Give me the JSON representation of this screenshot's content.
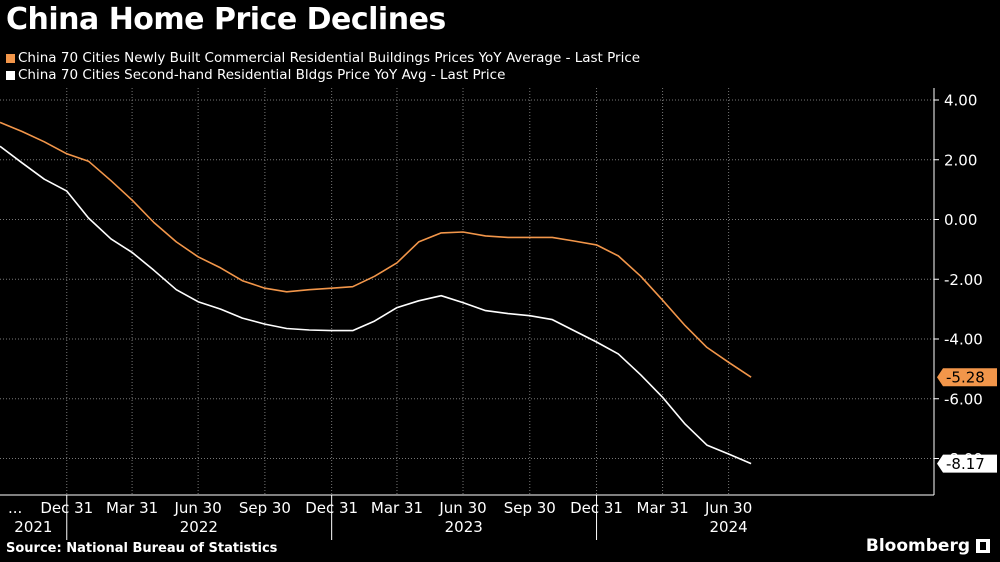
{
  "header": {
    "title": "China Home Price Declines"
  },
  "colors": {
    "background": "#000000",
    "series_new": "#f2964a",
    "series_second": "#ffffff",
    "grid": "#777777",
    "axis": "#ffffff"
  },
  "footer": {
    "source": "Source: National Bureau of Statistics",
    "brand": "Bloomberg"
  },
  "chart_data": {
    "type": "line",
    "title": "China Home Price Declines",
    "xlabel": "",
    "ylabel": "",
    "xlim": [
      0,
      1287
    ],
    "ylim": [
      -9,
      4.2
    ],
    "grid": true,
    "legend_position": "top-left",
    "y_ticks": [
      {
        "value": 4,
        "label": "4.00"
      },
      {
        "value": 2,
        "label": "2.00"
      },
      {
        "value": 0,
        "label": "0.00"
      },
      {
        "value": -2,
        "label": "-2.00"
      },
      {
        "value": -4,
        "label": "-4.00"
      },
      {
        "value": -6,
        "label": "-6.00"
      },
      {
        "value": -8,
        "label": "-8.00"
      }
    ],
    "x_ticks": [
      {
        "day": 0,
        "label": "..."
      },
      {
        "day": 92,
        "label": "Dec 31"
      },
      {
        "day": 182,
        "label": "Mar 31"
      },
      {
        "day": 273,
        "label": "Jun 30"
      },
      {
        "day": 365,
        "label": "Sep 30"
      },
      {
        "day": 457,
        "label": "Dec 31"
      },
      {
        "day": 547,
        "label": "Mar 31"
      },
      {
        "day": 638,
        "label": "Jun 30"
      },
      {
        "day": 730,
        "label": "Sep 30"
      },
      {
        "day": 822,
        "label": "Dec 31"
      },
      {
        "day": 913,
        "label": "Mar 31"
      },
      {
        "day": 1004,
        "label": "Jun 30"
      }
    ],
    "year_labels": [
      {
        "day": 46,
        "label": "2021"
      },
      {
        "day": 274,
        "label": "2022"
      },
      {
        "day": 639,
        "label": "2023"
      },
      {
        "day": 1004,
        "label": "2024"
      }
    ],
    "year_separators": [
      92,
      457,
      822
    ],
    "series": [
      {
        "name": "China 70 Cities Newly Built Commercial Residential Buildings Prices YoY Average - Last Price",
        "color": "#f2964a",
        "last_value": -5.28,
        "last_label": "-5.28",
        "points": [
          [
            0,
            3.25
          ],
          [
            30,
            2.95
          ],
          [
            61,
            2.6
          ],
          [
            92,
            2.2
          ],
          [
            122,
            1.95
          ],
          [
            153,
            1.3
          ],
          [
            182,
            0.65
          ],
          [
            212,
            -0.1
          ],
          [
            243,
            -0.75
          ],
          [
            273,
            -1.25
          ],
          [
            304,
            -1.62
          ],
          [
            334,
            -2.05
          ],
          [
            365,
            -2.3
          ],
          [
            395,
            -2.42
          ],
          [
            426,
            -2.35
          ],
          [
            457,
            -2.3
          ],
          [
            486,
            -2.25
          ],
          [
            516,
            -1.9
          ],
          [
            547,
            -1.45
          ],
          [
            577,
            -0.75
          ],
          [
            608,
            -0.45
          ],
          [
            638,
            -0.42
          ],
          [
            669,
            -0.55
          ],
          [
            700,
            -0.6
          ],
          [
            730,
            -0.6
          ],
          [
            761,
            -0.6
          ],
          [
            791,
            -0.72
          ],
          [
            822,
            -0.85
          ],
          [
            852,
            -1.22
          ],
          [
            883,
            -1.9
          ],
          [
            913,
            -2.7
          ],
          [
            944,
            -3.55
          ],
          [
            974,
            -4.28
          ],
          [
            1004,
            -4.78
          ],
          [
            1035,
            -5.28
          ]
        ]
      },
      {
        "name": "China 70 Cities Second-hand Residential Bldgs Price YoY Avg - Last Price",
        "color": "#ffffff",
        "last_value": -8.17,
        "last_label": "-8.17",
        "points": [
          [
            0,
            2.45
          ],
          [
            30,
            1.9
          ],
          [
            61,
            1.35
          ],
          [
            92,
            0.95
          ],
          [
            122,
            0.05
          ],
          [
            153,
            -0.65
          ],
          [
            182,
            -1.1
          ],
          [
            212,
            -1.7
          ],
          [
            243,
            -2.35
          ],
          [
            273,
            -2.75
          ],
          [
            304,
            -3.0
          ],
          [
            334,
            -3.3
          ],
          [
            365,
            -3.5
          ],
          [
            395,
            -3.65
          ],
          [
            426,
            -3.7
          ],
          [
            457,
            -3.72
          ],
          [
            486,
            -3.72
          ],
          [
            516,
            -3.4
          ],
          [
            547,
            -2.95
          ],
          [
            577,
            -2.72
          ],
          [
            608,
            -2.55
          ],
          [
            638,
            -2.78
          ],
          [
            669,
            -3.05
          ],
          [
            700,
            -3.15
          ],
          [
            730,
            -3.22
          ],
          [
            761,
            -3.35
          ],
          [
            791,
            -3.72
          ],
          [
            822,
            -4.1
          ],
          [
            852,
            -4.5
          ],
          [
            883,
            -5.2
          ],
          [
            913,
            -5.95
          ],
          [
            944,
            -6.85
          ],
          [
            974,
            -7.55
          ],
          [
            1004,
            -7.85
          ],
          [
            1035,
            -8.17
          ]
        ]
      }
    ]
  }
}
